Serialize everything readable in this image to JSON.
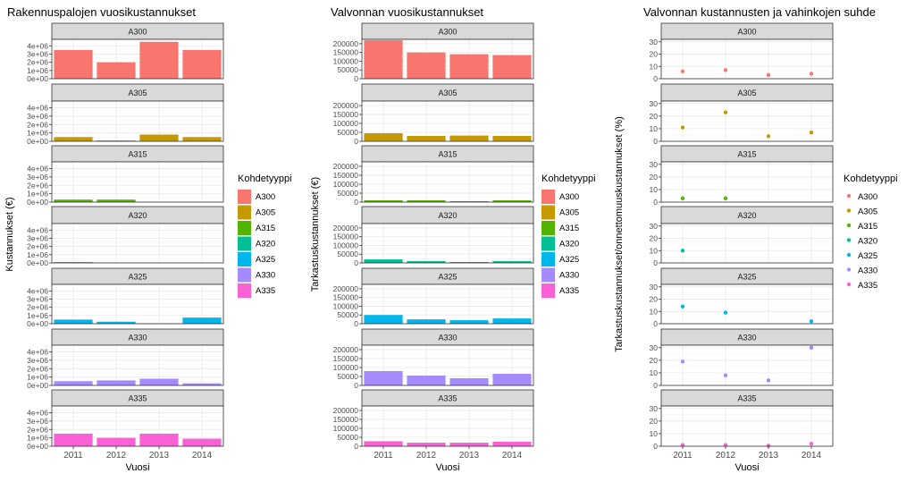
{
  "colors": {
    "A300": "#F8766D",
    "A305": "#C49A00",
    "A315": "#53B400",
    "A320": "#00C094",
    "A325": "#00B6EB",
    "A330": "#A58AFF",
    "A335": "#FB61D7",
    "strip_fill": "#d9d9d9",
    "grid_major": "#ebebeb",
    "grid_minor": "#f5f5f5",
    "panel_border": "#333333",
    "axis_text": "#4d4d4d"
  },
  "chart_data": [
    {
      "id": "costs",
      "type": "bar",
      "title": "Rakennuspalojen vuosikustannukset",
      "xlabel": "Vuosi",
      "ylabel": "Kustannukset (€)",
      "ylim": [
        0,
        4800000
      ],
      "yticks": [
        0,
        1000000,
        2000000,
        3000000,
        4000000
      ],
      "ytick_labels": [
        "0e+00",
        "1e+06",
        "2e+06",
        "3e+06",
        "4e+06"
      ],
      "categories": [
        "2011",
        "2012",
        "2013",
        "2014"
      ],
      "legend_title": "Kohdetyyppi",
      "legend_position": "right",
      "series": [
        {
          "name": "A300",
          "values": [
            3500000,
            2000000,
            4500000,
            3500000
          ]
        },
        {
          "name": "A305",
          "values": [
            500000,
            100000,
            800000,
            500000
          ]
        },
        {
          "name": "A315",
          "values": [
            300000,
            300000,
            null,
            null
          ]
        },
        {
          "name": "A320",
          "values": [
            100000,
            null,
            null,
            null
          ]
        },
        {
          "name": "A325",
          "values": [
            500000,
            250000,
            50000,
            750000
          ]
        },
        {
          "name": "A330",
          "values": [
            500000,
            600000,
            800000,
            250000
          ]
        },
        {
          "name": "A335",
          "values": [
            1500000,
            1000000,
            1500000,
            900000
          ]
        }
      ]
    },
    {
      "id": "inspection",
      "type": "bar",
      "title": "Valvonnan vuosikustannukset",
      "xlabel": "Vuosi",
      "ylabel": "Tarkastuskustannukset (€)",
      "ylim": [
        0,
        225000
      ],
      "yticks": [
        0,
        50000,
        100000,
        150000,
        200000
      ],
      "ytick_labels": [
        "0",
        "50000",
        "100000",
        "150000",
        "200000"
      ],
      "categories": [
        "2011",
        "2012",
        "2013",
        "2014"
      ],
      "legend_title": "Kohdetyyppi",
      "legend_position": "right",
      "series": [
        {
          "name": "A300",
          "values": [
            220000,
            150000,
            140000,
            135000
          ]
        },
        {
          "name": "A305",
          "values": [
            45000,
            30000,
            32000,
            30000
          ]
        },
        {
          "name": "A315",
          "values": [
            10000,
            10000,
            5000,
            10000
          ]
        },
        {
          "name": "A320",
          "values": [
            20000,
            10000,
            5000,
            10000
          ]
        },
        {
          "name": "A325",
          "values": [
            50000,
            25000,
            20000,
            30000
          ]
        },
        {
          "name": "A330",
          "values": [
            80000,
            55000,
            40000,
            65000
          ]
        },
        {
          "name": "A335",
          "values": [
            28000,
            20000,
            20000,
            25000
          ]
        }
      ]
    },
    {
      "id": "ratio",
      "type": "scatter",
      "title": "Valvonnan kustannusten ja vahinkojen suhde",
      "xlabel": "Vuosi",
      "ylabel": "Tarkastuskustannukset/onnettomuuskustannukset (%)",
      "ylim": [
        0,
        32
      ],
      "yticks": [
        0,
        10,
        20,
        30
      ],
      "ytick_labels": [
        "0",
        "10",
        "20",
        "30"
      ],
      "categories": [
        "2011",
        "2012",
        "2013",
        "2014"
      ],
      "legend_title": "Kohdetyyppi",
      "legend_position": "right",
      "series": [
        {
          "name": "A300",
          "values": [
            6,
            7,
            3,
            4
          ]
        },
        {
          "name": "A305",
          "values": [
            11,
            23,
            4,
            7
          ]
        },
        {
          "name": "A315",
          "values": [
            3,
            3,
            null,
            null
          ]
        },
        {
          "name": "A320",
          "values": [
            10,
            null,
            null,
            null
          ]
        },
        {
          "name": "A325",
          "values": [
            14,
            9,
            null,
            2
          ]
        },
        {
          "name": "A330",
          "values": [
            19,
            8,
            4,
            30
          ]
        },
        {
          "name": "A335",
          "values": [
            1,
            1,
            0.5,
            2
          ]
        }
      ]
    }
  ]
}
